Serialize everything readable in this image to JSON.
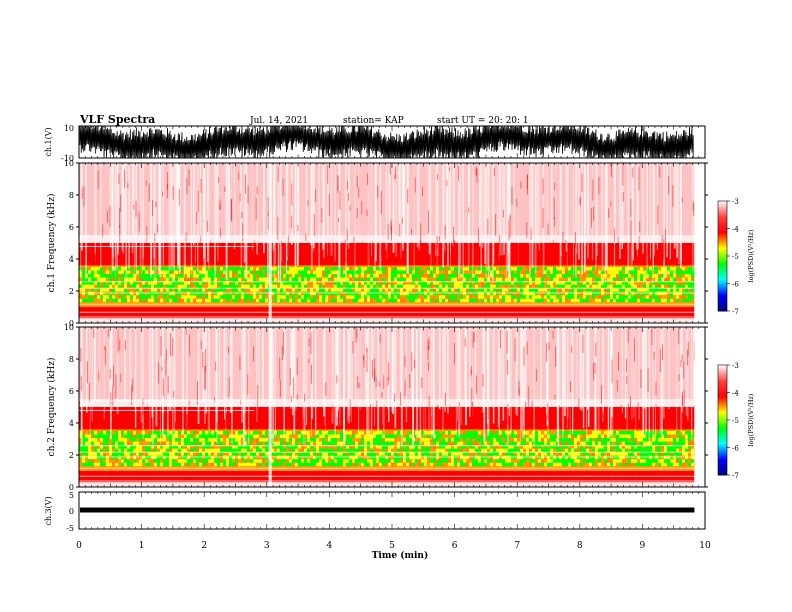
{
  "header": {
    "title": "VLF Spectra",
    "date": "Jul. 14, 2021",
    "station": "station= KAP",
    "start": "start UT = 20: 20: 1"
  },
  "chart_data": [
    {
      "type": "line",
      "name": "ch1-waveform",
      "ylabel": "ch.1(V)",
      "ylim": [
        -10,
        10
      ],
      "yticks": [
        "10",
        "-10"
      ],
      "xlim": [
        0,
        10
      ],
      "data_end": 9.83
    },
    {
      "type": "heatmap",
      "name": "ch1-spectrogram",
      "ylabel": "ch.1 Frequency (kHz)",
      "ylim": [
        0,
        10
      ],
      "yticks": [
        "0",
        "2",
        "4",
        "6",
        "8",
        "10"
      ],
      "xlim": [
        0,
        10
      ],
      "colorbar": {
        "label": "log(PSD)(V²/Hz)",
        "ticks": [
          "-3",
          "-4",
          "-5",
          "-6",
          "-7"
        ],
        "range": [
          -7,
          -3
        ]
      }
    },
    {
      "type": "heatmap",
      "name": "ch2-spectrogram",
      "ylabel": "ch.2 Frequency (kHz)",
      "ylim": [
        0,
        10
      ],
      "yticks": [
        "0",
        "2",
        "4",
        "6",
        "8",
        "10"
      ],
      "xlim": [
        0,
        10
      ],
      "colorbar": {
        "label": "log(PSD)(V²/Hz)",
        "ticks": [
          "-3",
          "-4",
          "-5",
          "-6",
          "-7"
        ],
        "range": [
          -7,
          -3
        ]
      }
    },
    {
      "type": "line",
      "name": "ch3-waveform",
      "ylabel": "ch.3(V)",
      "ylim": [
        -5,
        5
      ],
      "yticks": [
        "5",
        "0",
        "-5"
      ],
      "xlim": [
        0,
        10
      ],
      "level": 0
    }
  ],
  "xaxis": {
    "label": "Time (min)",
    "ticks": [
      "0",
      "1",
      "2",
      "3",
      "4",
      "5",
      "6",
      "7",
      "8",
      "9",
      "10"
    ]
  },
  "colors": {
    "high": "#ff0000",
    "mid": "#ffff00",
    "low": "#00ff00",
    "floor": "#0000ff",
    "trace": "#000000"
  }
}
